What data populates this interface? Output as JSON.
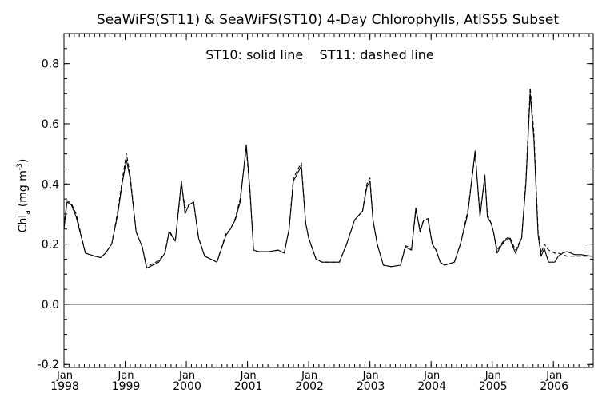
{
  "chart_data": {
    "type": "line",
    "title": "SeaWiFS(ST11) & SeaWiFS(ST10) 4-Day Chlorophylls, AtlS55 Subset",
    "annotation": "ST10: solid line    ST11: dashed line",
    "ylabel": "Chl",
    "ylabel_sub": "a",
    "ylabel_unit": "(mg m",
    "ylabel_sup": "-3",
    "ylabel_close": ")",
    "ylim": [
      -0.21,
      0.9
    ],
    "xlim": [
      1998.0,
      2006.65
    ],
    "y_ticks": [
      -0.2,
      0.0,
      0.2,
      0.4,
      0.6,
      0.8
    ],
    "y_tick_labels": [
      "-0.2",
      "0.0",
      "0.2",
      "0.4",
      "0.6",
      "0.8"
    ],
    "x_ticks": [
      1998,
      1999,
      2000,
      2001,
      2002,
      2003,
      2004,
      2005,
      2006
    ],
    "x_month_label": "Jan",
    "x_year_labels": [
      "1998",
      "1999",
      "2000",
      "2001",
      "2002",
      "2003",
      "2004",
      "2005",
      "2006"
    ],
    "reference_line_y": 0.0,
    "grid": false,
    "series": [
      {
        "name": "ST10",
        "style": "solid",
        "color": "#000000",
        "x": [
          1998.0,
          1998.05,
          1998.12,
          1998.2,
          1998.35,
          1998.5,
          1998.6,
          1998.68,
          1998.78,
          1998.88,
          1998.95,
          1999.02,
          1999.08,
          1999.18,
          1999.28,
          1999.35,
          1999.45,
          1999.55,
          1999.65,
          1999.72,
          1999.82,
          1999.92,
          1999.98,
          2000.04,
          2000.12,
          2000.2,
          2000.3,
          2000.4,
          2000.5,
          2000.65,
          2000.72,
          2000.8,
          2000.88,
          2000.98,
          2001.04,
          2001.1,
          2001.18,
          2001.35,
          2001.5,
          2001.6,
          2001.68,
          2001.75,
          2001.88,
          2001.95,
          2002.0,
          2002.05,
          2002.12,
          2002.22,
          2002.35,
          2002.5,
          2002.62,
          2002.75,
          2002.88,
          2002.95,
          2003.0,
          2003.05,
          2003.12,
          2003.22,
          2003.35,
          2003.5,
          2003.58,
          2003.68,
          2003.75,
          2003.82,
          2003.88,
          2003.95,
          2004.02,
          2004.08,
          2004.15,
          2004.22,
          2004.3,
          2004.38,
          2004.48,
          2004.6,
          2004.72,
          2004.8,
          2004.88,
          2004.92,
          2004.98,
          2005.02,
          2005.08,
          2005.13,
          2005.2,
          2005.28,
          2005.38,
          2005.48,
          2005.55,
          2005.62,
          2005.68,
          2005.75,
          2005.8,
          2005.85,
          2005.92,
          2005.98,
          2006.02,
          2006.08,
          2006.15,
          2006.22,
          2006.35,
          2006.45,
          2006.62
        ],
        "values": [
          0.25,
          0.34,
          0.33,
          0.29,
          0.17,
          0.16,
          0.155,
          0.17,
          0.2,
          0.3,
          0.4,
          0.48,
          0.42,
          0.24,
          0.19,
          0.12,
          0.13,
          0.14,
          0.17,
          0.24,
          0.21,
          0.41,
          0.3,
          0.33,
          0.34,
          0.22,
          0.16,
          0.15,
          0.14,
          0.23,
          0.25,
          0.28,
          0.34,
          0.53,
          0.38,
          0.18,
          0.175,
          0.175,
          0.18,
          0.17,
          0.25,
          0.41,
          0.46,
          0.27,
          0.22,
          0.19,
          0.15,
          0.14,
          0.14,
          0.14,
          0.2,
          0.28,
          0.31,
          0.39,
          0.41,
          0.28,
          0.2,
          0.13,
          0.125,
          0.13,
          0.19,
          0.18,
          0.32,
          0.24,
          0.28,
          0.28,
          0.2,
          0.18,
          0.14,
          0.13,
          0.135,
          0.14,
          0.2,
          0.3,
          0.51,
          0.29,
          0.43,
          0.29,
          0.27,
          0.24,
          0.17,
          0.19,
          0.21,
          0.22,
          0.17,
          0.22,
          0.4,
          0.7,
          0.55,
          0.23,
          0.16,
          0.185,
          0.14,
          0.14,
          0.14,
          0.16,
          0.17,
          0.175,
          0.165,
          0.165,
          0.16
        ],
        "x_trim": true
      },
      {
        "name": "ST11",
        "style": "dashed",
        "color": "#000000",
        "x": [
          1998.0,
          1998.05,
          1998.12,
          1998.2,
          1998.35,
          1998.5,
          1998.6,
          1998.68,
          1998.78,
          1998.88,
          1998.95,
          1999.02,
          1999.08,
          1999.18,
          1999.28,
          1999.35,
          1999.45,
          1999.55,
          1999.65,
          1999.72,
          1999.82,
          1999.92,
          1999.98,
          2000.04,
          2000.12,
          2000.2,
          2000.3,
          2000.4,
          2000.5,
          2000.65,
          2000.72,
          2000.8,
          2000.88,
          2000.98,
          2001.04,
          2001.1,
          2001.18,
          2001.35,
          2001.5,
          2001.6,
          2001.68,
          2001.75,
          2001.88,
          2001.95,
          2002.0,
          2002.05,
          2002.12,
          2002.22,
          2002.35,
          2002.5,
          2002.62,
          2002.75,
          2002.88,
          2002.95,
          2003.0,
          2003.05,
          2003.12,
          2003.22,
          2003.35,
          2003.5,
          2003.58,
          2003.68,
          2003.75,
          2003.82,
          2003.88,
          2003.95,
          2004.02,
          2004.08,
          2004.15,
          2004.22,
          2004.3,
          2004.38,
          2004.48,
          2004.6,
          2004.72,
          2004.8,
          2004.88,
          2004.92,
          2004.98,
          2005.02,
          2005.08,
          2005.13,
          2005.2,
          2005.28,
          2005.38,
          2005.48,
          2005.55,
          2005.62,
          2005.68,
          2005.75,
          2005.8,
          2005.85,
          2005.92,
          2005.98,
          2006.02,
          2006.08,
          2006.15,
          2006.22,
          2006.35,
          2006.45,
          2006.62
        ],
        "values": [
          0.26,
          0.345,
          0.335,
          0.3,
          0.17,
          0.16,
          0.155,
          0.17,
          0.2,
          0.31,
          0.41,
          0.5,
          0.43,
          0.24,
          0.19,
          0.125,
          0.135,
          0.145,
          0.17,
          0.245,
          0.21,
          0.4,
          0.32,
          0.33,
          0.34,
          0.22,
          0.16,
          0.15,
          0.14,
          0.235,
          0.25,
          0.285,
          0.35,
          0.52,
          0.37,
          0.18,
          0.175,
          0.175,
          0.18,
          0.17,
          0.25,
          0.42,
          0.47,
          0.27,
          0.22,
          0.19,
          0.15,
          0.14,
          0.14,
          0.14,
          0.2,
          0.28,
          0.31,
          0.4,
          0.42,
          0.28,
          0.2,
          0.13,
          0.125,
          0.13,
          0.195,
          0.185,
          0.31,
          0.25,
          0.28,
          0.285,
          0.2,
          0.18,
          0.14,
          0.13,
          0.135,
          0.14,
          0.2,
          0.31,
          0.5,
          0.3,
          0.42,
          0.3,
          0.27,
          0.24,
          0.18,
          0.195,
          0.215,
          0.225,
          0.18,
          0.22,
          0.41,
          0.72,
          0.57,
          0.24,
          0.17,
          0.2,
          0.18,
          0.175,
          0.17,
          0.17,
          0.165,
          0.16,
          0.16,
          0.16,
          0.16
        ]
      }
    ]
  }
}
